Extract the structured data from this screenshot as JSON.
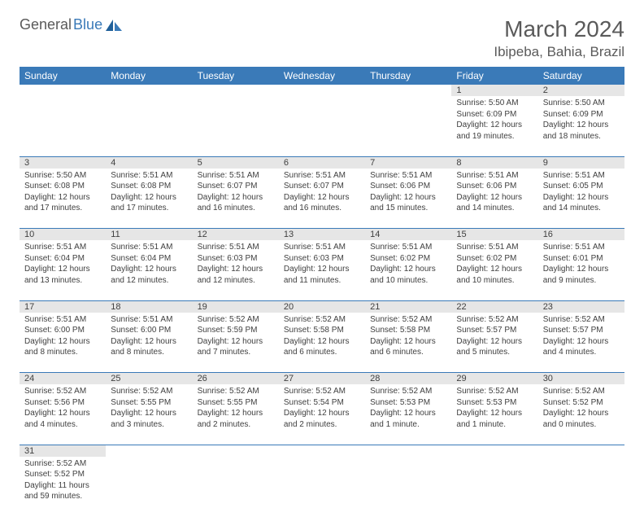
{
  "logo": {
    "text1": "General",
    "text2": "Blue"
  },
  "title": "March 2024",
  "location": "Ibipeba, Bahia, Brazil",
  "colors": {
    "header_bg": "#3a7ab8",
    "header_text": "#ffffff",
    "daynum_bg": "#e6e6e6",
    "text": "#404040",
    "rule": "#3a7ab8",
    "logo_gray": "#5a5a5a",
    "logo_blue": "#3a7ab8"
  },
  "typography": {
    "title_fontsize": 28,
    "location_fontsize": 17,
    "th_fontsize": 12,
    "daynum_fontsize": 11,
    "details_fontsize": 10
  },
  "daynames": [
    "Sunday",
    "Monday",
    "Tuesday",
    "Wednesday",
    "Thursday",
    "Friday",
    "Saturday"
  ],
  "weeks": [
    [
      null,
      null,
      null,
      null,
      null,
      {
        "n": "1",
        "sr": "Sunrise: 5:50 AM",
        "ss": "Sunset: 6:09 PM",
        "d1": "Daylight: 12 hours",
        "d2": "and 19 minutes."
      },
      {
        "n": "2",
        "sr": "Sunrise: 5:50 AM",
        "ss": "Sunset: 6:09 PM",
        "d1": "Daylight: 12 hours",
        "d2": "and 18 minutes."
      }
    ],
    [
      {
        "n": "3",
        "sr": "Sunrise: 5:50 AM",
        "ss": "Sunset: 6:08 PM",
        "d1": "Daylight: 12 hours",
        "d2": "and 17 minutes."
      },
      {
        "n": "4",
        "sr": "Sunrise: 5:51 AM",
        "ss": "Sunset: 6:08 PM",
        "d1": "Daylight: 12 hours",
        "d2": "and 17 minutes."
      },
      {
        "n": "5",
        "sr": "Sunrise: 5:51 AM",
        "ss": "Sunset: 6:07 PM",
        "d1": "Daylight: 12 hours",
        "d2": "and 16 minutes."
      },
      {
        "n": "6",
        "sr": "Sunrise: 5:51 AM",
        "ss": "Sunset: 6:07 PM",
        "d1": "Daylight: 12 hours",
        "d2": "and 16 minutes."
      },
      {
        "n": "7",
        "sr": "Sunrise: 5:51 AM",
        "ss": "Sunset: 6:06 PM",
        "d1": "Daylight: 12 hours",
        "d2": "and 15 minutes."
      },
      {
        "n": "8",
        "sr": "Sunrise: 5:51 AM",
        "ss": "Sunset: 6:06 PM",
        "d1": "Daylight: 12 hours",
        "d2": "and 14 minutes."
      },
      {
        "n": "9",
        "sr": "Sunrise: 5:51 AM",
        "ss": "Sunset: 6:05 PM",
        "d1": "Daylight: 12 hours",
        "d2": "and 14 minutes."
      }
    ],
    [
      {
        "n": "10",
        "sr": "Sunrise: 5:51 AM",
        "ss": "Sunset: 6:04 PM",
        "d1": "Daylight: 12 hours",
        "d2": "and 13 minutes."
      },
      {
        "n": "11",
        "sr": "Sunrise: 5:51 AM",
        "ss": "Sunset: 6:04 PM",
        "d1": "Daylight: 12 hours",
        "d2": "and 12 minutes."
      },
      {
        "n": "12",
        "sr": "Sunrise: 5:51 AM",
        "ss": "Sunset: 6:03 PM",
        "d1": "Daylight: 12 hours",
        "d2": "and 12 minutes."
      },
      {
        "n": "13",
        "sr": "Sunrise: 5:51 AM",
        "ss": "Sunset: 6:03 PM",
        "d1": "Daylight: 12 hours",
        "d2": "and 11 minutes."
      },
      {
        "n": "14",
        "sr": "Sunrise: 5:51 AM",
        "ss": "Sunset: 6:02 PM",
        "d1": "Daylight: 12 hours",
        "d2": "and 10 minutes."
      },
      {
        "n": "15",
        "sr": "Sunrise: 5:51 AM",
        "ss": "Sunset: 6:02 PM",
        "d1": "Daylight: 12 hours",
        "d2": "and 10 minutes."
      },
      {
        "n": "16",
        "sr": "Sunrise: 5:51 AM",
        "ss": "Sunset: 6:01 PM",
        "d1": "Daylight: 12 hours",
        "d2": "and 9 minutes."
      }
    ],
    [
      {
        "n": "17",
        "sr": "Sunrise: 5:51 AM",
        "ss": "Sunset: 6:00 PM",
        "d1": "Daylight: 12 hours",
        "d2": "and 8 minutes."
      },
      {
        "n": "18",
        "sr": "Sunrise: 5:51 AM",
        "ss": "Sunset: 6:00 PM",
        "d1": "Daylight: 12 hours",
        "d2": "and 8 minutes."
      },
      {
        "n": "19",
        "sr": "Sunrise: 5:52 AM",
        "ss": "Sunset: 5:59 PM",
        "d1": "Daylight: 12 hours",
        "d2": "and 7 minutes."
      },
      {
        "n": "20",
        "sr": "Sunrise: 5:52 AM",
        "ss": "Sunset: 5:58 PM",
        "d1": "Daylight: 12 hours",
        "d2": "and 6 minutes."
      },
      {
        "n": "21",
        "sr": "Sunrise: 5:52 AM",
        "ss": "Sunset: 5:58 PM",
        "d1": "Daylight: 12 hours",
        "d2": "and 6 minutes."
      },
      {
        "n": "22",
        "sr": "Sunrise: 5:52 AM",
        "ss": "Sunset: 5:57 PM",
        "d1": "Daylight: 12 hours",
        "d2": "and 5 minutes."
      },
      {
        "n": "23",
        "sr": "Sunrise: 5:52 AM",
        "ss": "Sunset: 5:57 PM",
        "d1": "Daylight: 12 hours",
        "d2": "and 4 minutes."
      }
    ],
    [
      {
        "n": "24",
        "sr": "Sunrise: 5:52 AM",
        "ss": "Sunset: 5:56 PM",
        "d1": "Daylight: 12 hours",
        "d2": "and 4 minutes."
      },
      {
        "n": "25",
        "sr": "Sunrise: 5:52 AM",
        "ss": "Sunset: 5:55 PM",
        "d1": "Daylight: 12 hours",
        "d2": "and 3 minutes."
      },
      {
        "n": "26",
        "sr": "Sunrise: 5:52 AM",
        "ss": "Sunset: 5:55 PM",
        "d1": "Daylight: 12 hours",
        "d2": "and 2 minutes."
      },
      {
        "n": "27",
        "sr": "Sunrise: 5:52 AM",
        "ss": "Sunset: 5:54 PM",
        "d1": "Daylight: 12 hours",
        "d2": "and 2 minutes."
      },
      {
        "n": "28",
        "sr": "Sunrise: 5:52 AM",
        "ss": "Sunset: 5:53 PM",
        "d1": "Daylight: 12 hours",
        "d2": "and 1 minute."
      },
      {
        "n": "29",
        "sr": "Sunrise: 5:52 AM",
        "ss": "Sunset: 5:53 PM",
        "d1": "Daylight: 12 hours",
        "d2": "and 1 minute."
      },
      {
        "n": "30",
        "sr": "Sunrise: 5:52 AM",
        "ss": "Sunset: 5:52 PM",
        "d1": "Daylight: 12 hours",
        "d2": "and 0 minutes."
      }
    ],
    [
      {
        "n": "31",
        "sr": "Sunrise: 5:52 AM",
        "ss": "Sunset: 5:52 PM",
        "d1": "Daylight: 11 hours",
        "d2": "and 59 minutes."
      },
      null,
      null,
      null,
      null,
      null,
      null
    ]
  ]
}
